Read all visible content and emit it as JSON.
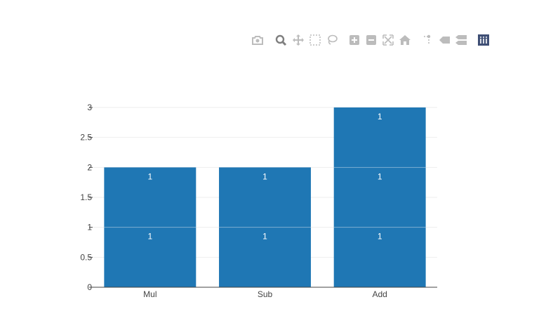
{
  "modebar": {
    "buttons": [
      {
        "name": "camera-icon",
        "active": false
      },
      {
        "name": "zoom-icon",
        "active": true
      },
      {
        "name": "pan-icon",
        "active": false
      },
      {
        "name": "box-select-icon",
        "active": false
      },
      {
        "name": "lasso-select-icon",
        "active": false
      },
      {
        "name": "zoom-in-icon",
        "active": false
      },
      {
        "name": "zoom-out-icon",
        "active": false
      },
      {
        "name": "autoscale-icon",
        "active": false
      },
      {
        "name": "reset-axes-icon",
        "active": false
      },
      {
        "name": "spike-lines-icon",
        "active": false
      },
      {
        "name": "hover-closest-icon",
        "active": false
      },
      {
        "name": "hover-compare-icon",
        "active": false
      },
      {
        "name": "plotly-logo-icon",
        "active": false
      }
    ]
  },
  "colors": {
    "bar": "#1f77b4",
    "grid": "#eeeeee",
    "axis": "#444444",
    "modebar_icon": "#bcbcbc",
    "modebar_active": "#7f7f7f",
    "logo": "#3f4f75"
  },
  "chart_data": {
    "type": "bar",
    "barmode": "stack",
    "categories": [
      "Mul",
      "Sub",
      "Add"
    ],
    "series": [
      {
        "values": [
          1,
          1,
          1
        ],
        "text": [
          "1",
          "1",
          "1"
        ]
      },
      {
        "values": [
          1,
          1,
          1
        ],
        "text": [
          "1",
          "1",
          "1"
        ]
      },
      {
        "values": [
          0,
          0,
          1
        ],
        "text": [
          "",
          "",
          "1"
        ]
      }
    ],
    "ylim": [
      0,
      3
    ],
    "yticks": [
      "0",
      "0.5",
      "1",
      "1.5",
      "2",
      "2.5",
      "3"
    ],
    "grid": true,
    "legend": false
  }
}
